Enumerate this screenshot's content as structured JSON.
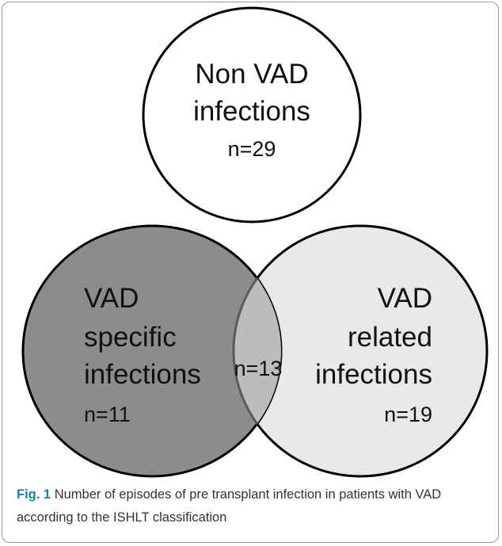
{
  "diagram": {
    "sets": [
      {
        "label_lines": [
          "Non VAD",
          "infections"
        ],
        "count": "n=29"
      },
      {
        "label_lines": [
          "VAD",
          "specific",
          "infections"
        ],
        "count": "n=11"
      },
      {
        "label_lines": [
          "VAD",
          "related",
          "infections"
        ],
        "count": "n=19"
      }
    ],
    "intersection": "n=13"
  },
  "caption": {
    "label": "Fig. 1",
    "text": "Number of episodes of pre transplant infection in patients with VAD according to the ISHLT classification"
  }
}
